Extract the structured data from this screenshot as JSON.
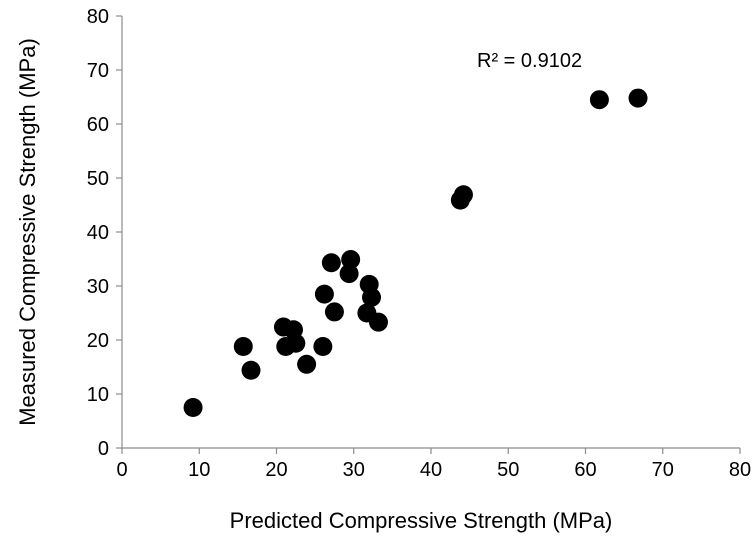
{
  "chart_data": {
    "type": "scatter",
    "xlabel": "Predicted Compressive Strength (MPa)",
    "ylabel": "Measured Compressive Strength (MPa)",
    "xlim": [
      0,
      80
    ],
    "ylim": [
      0,
      80
    ],
    "x_ticks": [
      "0",
      "10",
      "20",
      "30",
      "40",
      "50",
      "60",
      "70",
      "80"
    ],
    "y_ticks": [
      "0",
      "10",
      "20",
      "30",
      "40",
      "50",
      "60",
      "70",
      "80"
    ],
    "grid": false,
    "annotation": "R² = 0.9102",
    "points": [
      {
        "x": 9.2,
        "y": 7.5
      },
      {
        "x": 15.7,
        "y": 18.8
      },
      {
        "x": 16.7,
        "y": 14.4
      },
      {
        "x": 20.9,
        "y": 22.4
      },
      {
        "x": 21.2,
        "y": 18.8
      },
      {
        "x": 22.2,
        "y": 21.9
      },
      {
        "x": 22.5,
        "y": 19.4
      },
      {
        "x": 23.9,
        "y": 15.5
      },
      {
        "x": 26.0,
        "y": 18.8
      },
      {
        "x": 26.2,
        "y": 28.5
      },
      {
        "x": 27.1,
        "y": 34.3
      },
      {
        "x": 27.5,
        "y": 25.2
      },
      {
        "x": 29.4,
        "y": 32.3
      },
      {
        "x": 29.6,
        "y": 34.9
      },
      {
        "x": 31.7,
        "y": 25.0
      },
      {
        "x": 32.0,
        "y": 30.3
      },
      {
        "x": 32.3,
        "y": 27.9
      },
      {
        "x": 33.2,
        "y": 23.3
      },
      {
        "x": 43.8,
        "y": 45.9
      },
      {
        "x": 44.2,
        "y": 46.9
      },
      {
        "x": 61.8,
        "y": 64.5
      },
      {
        "x": 66.8,
        "y": 64.8
      }
    ]
  }
}
